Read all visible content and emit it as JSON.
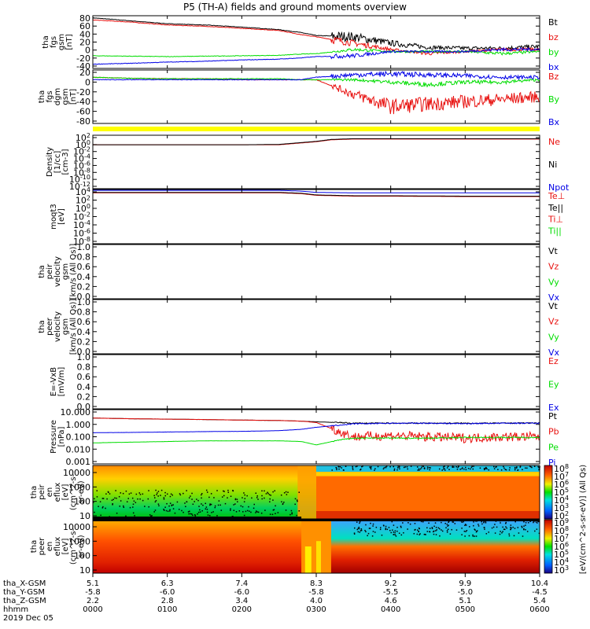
{
  "title": "P5 (TH-A) fields and ground moments overview",
  "colors": {
    "black": "#000000",
    "red": "#e8100e",
    "green": "#00dd00",
    "blue": "#0000e6",
    "quality_bar": "#ffff00"
  },
  "time_axis": {
    "row_labels": [
      "tha_X-GSM",
      "tha_Y-GSM",
      "tha_Z-GSM",
      "hhmm",
      "2019 Dec 05"
    ],
    "ticks": [
      {
        "x_gsm": "5.1",
        "y_gsm": "-5.8",
        "z_gsm": "2.2",
        "hhmm": "0000"
      },
      {
        "x_gsm": "6.3",
        "y_gsm": "-6.0",
        "z_gsm": "2.8",
        "hhmm": "0100"
      },
      {
        "x_gsm": "7.4",
        "y_gsm": "-6.0",
        "z_gsm": "3.4",
        "hhmm": "0200"
      },
      {
        "x_gsm": "8.3",
        "y_gsm": "-5.8",
        "z_gsm": "4.0",
        "hhmm": "0300"
      },
      {
        "x_gsm": "9.2",
        "y_gsm": "-5.5",
        "z_gsm": "4.6",
        "hhmm": "0400"
      },
      {
        "x_gsm": "9.9",
        "y_gsm": "-5.0",
        "z_gsm": "5.1",
        "hhmm": "0500"
      },
      {
        "x_gsm": "10.4",
        "y_gsm": "-4.5",
        "z_gsm": "5.4",
        "hhmm": "0600"
      }
    ]
  },
  "chart_data": [
    {
      "type": "line",
      "ylabel_lines": [
        "tha",
        "fgs",
        "gsm",
        "[nT]"
      ],
      "yticks": [
        "80",
        "60",
        "40",
        "20",
        "0",
        "-20",
        "-40"
      ],
      "ylim": [
        -40,
        85
      ],
      "x": [
        0,
        0.5,
        1.0,
        1.5,
        2.0,
        2.5,
        2.8,
        3.0,
        3.5,
        4.0,
        4.5,
        5.0,
        5.5,
        6.0
      ],
      "series": [
        {
          "name": "Bt",
          "color": "black",
          "values": [
            80,
            73,
            66,
            63,
            58,
            52,
            45,
            38,
            35,
            20,
            10,
            8,
            8,
            12
          ]
        },
        {
          "name": "bz",
          "color": "red",
          "values": [
            75,
            70,
            63,
            60,
            55,
            50,
            40,
            35,
            20,
            5,
            -5,
            0,
            5,
            5
          ]
        },
        {
          "name": "by",
          "color": "green",
          "values": [
            -10,
            -11,
            -12,
            -11,
            -10,
            -9,
            -6,
            -5,
            5,
            0,
            0,
            0,
            -5,
            0
          ]
        },
        {
          "name": "bx",
          "color": "blue",
          "values": [
            -30,
            -28,
            -25,
            -23,
            -20,
            -18,
            -15,
            -12,
            -10,
            0,
            0,
            0,
            5,
            5
          ]
        }
      ]
    },
    {
      "type": "line",
      "ylabel_lines": [
        "tha",
        "fgs",
        "dgm",
        "gsm",
        "[nT]"
      ],
      "yticks": [
        "20",
        "0",
        "-20",
        "-40",
        "-60",
        "-80"
      ],
      "ylim": [
        -90,
        20
      ],
      "x": [
        0,
        0.5,
        1.0,
        1.5,
        2.0,
        2.5,
        2.8,
        3.0,
        3.5,
        4.0,
        4.5,
        5.0,
        5.5,
        6.0
      ],
      "series": [
        {
          "name": "Bz",
          "color": "red",
          "values": [
            5,
            3,
            2,
            2,
            0,
            0,
            0,
            0,
            -30,
            -55,
            -50,
            -45,
            -40,
            -35
          ]
        },
        {
          "name": "By",
          "color": "green",
          "values": [
            5,
            3,
            2,
            2,
            2,
            2,
            0,
            0,
            0,
            -5,
            -10,
            -5,
            -5,
            0
          ]
        },
        {
          "name": "Bx",
          "color": "blue",
          "values": [
            0,
            0,
            0,
            0,
            0,
            0,
            0,
            5,
            10,
            12,
            10,
            8,
            5,
            5
          ]
        }
      ]
    },
    {
      "type": "line",
      "scale": "log",
      "ylabel_lines": [
        "Density",
        "[1/cc]",
        "[cm-3]"
      ],
      "yticks": [
        "10^2",
        "10^0",
        "10^-2",
        "10^-4",
        "10^-6",
        "10^-8",
        "10^-10",
        "10^-12"
      ],
      "ylim_log10": [
        -12,
        2
      ],
      "x": [
        0,
        0.5,
        1.0,
        1.5,
        2.0,
        2.5,
        3.0,
        3.2,
        3.5,
        4.0,
        5.0,
        6.0
      ],
      "series": [
        {
          "name": "Ne",
          "color": "red",
          "values_log10": [
            -0.5,
            -0.5,
            -0.5,
            -0.5,
            -0.5,
            -0.5,
            0.3,
            0.8,
            1.0,
            1.0,
            1.0,
            1.0
          ]
        },
        {
          "name": "Ni",
          "color": "black",
          "values_log10": [
            -0.5,
            -0.5,
            -0.5,
            -0.5,
            -0.5,
            -0.4,
            0.4,
            0.9,
            1.1,
            1.1,
            1.1,
            1.1
          ]
        },
        {
          "name": "Npot",
          "color": "blue",
          "values_log10": []
        }
      ]
    },
    {
      "type": "line",
      "scale": "log",
      "ylabel_lines": [
        "moqt3",
        "[eV]"
      ],
      "yticks": [
        "10^4",
        "10^2",
        "10^0",
        "10^-2",
        "10^-4",
        "10^-6",
        "10^-8"
      ],
      "ylim_log10": [
        -9,
        4
      ],
      "x": [
        0,
        0.5,
        1.0,
        1.5,
        2.0,
        2.5,
        2.8,
        3.0,
        3.5,
        4.0,
        5.0,
        6.0
      ],
      "series": [
        {
          "name": "Te⊥",
          "color": "red",
          "values_log10": [
            3.2,
            3.2,
            3.2,
            3.2,
            3.2,
            3.2,
            3.0,
            2.6,
            2.4,
            2.4,
            2.3,
            2.3
          ]
        },
        {
          "name": "Te||",
          "color": "black",
          "values_log10": [
            3.3,
            3.3,
            3.3,
            3.3,
            3.3,
            3.3,
            3.1,
            2.7,
            2.5,
            2.5,
            2.4,
            2.4
          ]
        },
        {
          "name": "Ti⊥",
          "color": "red",
          "values_log10": []
        },
        {
          "name": "Ti||",
          "color": "green",
          "values_log10": []
        },
        {
          "name": "",
          "color": "blue",
          "values_log10": [
            3.8,
            3.8,
            3.8,
            3.8,
            3.8,
            3.8,
            3.6,
            3.3,
            3.2,
            3.2,
            3.2,
            3.2
          ]
        }
      ]
    },
    {
      "type": "line",
      "ylabel_lines": [
        "tha",
        "peir",
        "velocity",
        "gsm",
        "[km/s (All Qs)]"
      ],
      "yticks": [
        "1.0",
        "0.8",
        "0.6",
        "0.4",
        "0.2",
        "0.0"
      ],
      "ylim": [
        0,
        1
      ],
      "series": [
        {
          "name": "Vt",
          "color": "black",
          "values": []
        },
        {
          "name": "Vz",
          "color": "red",
          "values": []
        },
        {
          "name": "Vy",
          "color": "green",
          "values": []
        },
        {
          "name": "Vx",
          "color": "blue",
          "values": []
        }
      ]
    },
    {
      "type": "line",
      "ylabel_lines": [
        "tha",
        "peer",
        "velocity",
        "gsm",
        "[km/s (All Qs)]"
      ],
      "yticks": [
        "1.0",
        "0.8",
        "0.6",
        "0.4",
        "0.2",
        "0.0"
      ],
      "ylim": [
        0,
        1
      ],
      "series": [
        {
          "name": "Vt",
          "color": "black",
          "values": []
        },
        {
          "name": "Vz",
          "color": "red",
          "values": []
        },
        {
          "name": "Vy",
          "color": "green",
          "values": []
        },
        {
          "name": "Vx",
          "color": "blue",
          "values": []
        }
      ]
    },
    {
      "type": "line",
      "ylabel_lines": [
        "E=-VxB",
        "[mV/m]"
      ],
      "yticks": [
        "1.0",
        "0.8",
        "0.6",
        "0.4",
        "0.2",
        "0.0"
      ],
      "ylim": [
        0,
        1
      ],
      "series": [
        {
          "name": "Ez",
          "color": "red",
          "values": []
        },
        {
          "name": "Ey",
          "color": "green",
          "values": []
        },
        {
          "name": "Ex",
          "color": "blue",
          "values": []
        }
      ]
    },
    {
      "type": "line",
      "scale": "log",
      "ylabel_lines": [
        "Pressure",
        "[nPa]"
      ],
      "yticks": [
        "10.000",
        "1.000",
        "0.100",
        "0.010",
        "0.001"
      ],
      "ylim_log10": [
        -3,
        1
      ],
      "x": [
        0,
        0.5,
        1.0,
        1.5,
        2.0,
        2.5,
        2.8,
        3.0,
        3.3,
        3.5,
        4.0,
        4.5,
        5.0,
        5.5,
        6.0
      ],
      "series": [
        {
          "name": "Pt",
          "color": "black",
          "values_log10": [
            0.38,
            0.33,
            0.3,
            0.27,
            0.23,
            0.2,
            0.15,
            0.1,
            0.05,
            0.0,
            0.0,
            0.0,
            0.0,
            0.0,
            0.02
          ]
        },
        {
          "name": "Pb",
          "color": "red",
          "values_log10": [
            0.38,
            0.33,
            0.3,
            0.27,
            0.23,
            0.2,
            0.15,
            0.05,
            -0.6,
            -1.0,
            -0.9,
            -1.0,
            -1.1,
            -1.0,
            -1.0
          ]
        },
        {
          "name": "Pe",
          "color": "green",
          "values_log10": [
            -1.45,
            -1.4,
            -1.35,
            -1.3,
            -1.3,
            -1.3,
            -1.35,
            -1.6,
            -1.25,
            -1.1,
            -1.1,
            -1.1,
            -1.05,
            -1.05,
            -1.05
          ]
        },
        {
          "name": "Pi",
          "color": "blue",
          "values_log10": [
            -0.7,
            -0.68,
            -0.65,
            -0.62,
            -0.6,
            -0.55,
            -0.45,
            -0.3,
            -0.15,
            -0.05,
            0.0,
            0.0,
            -0.03,
            0.0,
            0.0
          ]
        }
      ]
    },
    {
      "type": "heatmap",
      "ylabel_lines": [
        "tha",
        "peir",
        "en",
        "eflux",
        "[eV]",
        "(cm^2-s-",
        "sr-eV)"
      ],
      "yticks": [
        "10000",
        "1000",
        "100",
        "10"
      ],
      "colorbar_label": "[eV/(cm^2-s-sr-eV)] (All Qs)",
      "colorbar_ticks": [
        "10^8",
        "10^7",
        "10^6",
        "10^5",
        "10^4",
        "10^3",
        "10^2"
      ]
    },
    {
      "type": "heatmap",
      "ylabel_lines": [
        "tha",
        "peer",
        "en",
        "eflux",
        "[eV]",
        "(cm^2-s-",
        "sr-eV)"
      ],
      "yticks": [
        "10000",
        "1000",
        "100",
        "10"
      ],
      "colorbar_label": "[eV/(cm^2-s-sr-eV)] (All Qs)",
      "colorbar_ticks": [
        "10^9",
        "10^8",
        "10^7",
        "10^6",
        "10^5",
        "10^4",
        "10^3"
      ]
    }
  ]
}
